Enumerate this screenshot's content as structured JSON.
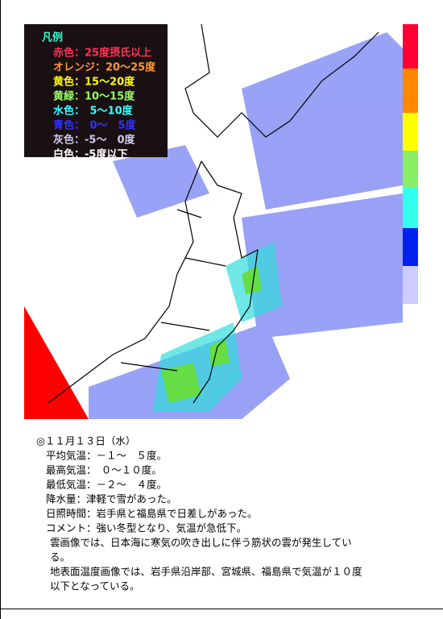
{
  "legend": {
    "title": "凡例",
    "title_color": "#33ffcc",
    "items": [
      {
        "text": "赤色：25度摂氏以上",
        "color": "#ff3355"
      },
      {
        "text": "オレンジ：20～25度",
        "color": "#ff9933"
      },
      {
        "text": "黄色：15～20度",
        "color": "#ffff00"
      },
      {
        "text": "黄緑：10～15度",
        "color": "#99ff66"
      },
      {
        "text": "水色：　5～10度",
        "color": "#33ffff"
      },
      {
        "text": "青色：　0～　5度",
        "color": "#3333ff"
      },
      {
        "text": "灰色：-5～　0度",
        "color": "#ccccee"
      },
      {
        "text": "白色：-5度以下",
        "color": "#ffffff"
      }
    ]
  },
  "scale_bar": [
    "#ff0033",
    "#ff8800",
    "#ffff00",
    "#88ee66",
    "#33ffee",
    "#0022ee",
    "#ccccff"
  ],
  "report": {
    "date": "◎１１月１３日（水）",
    "lines": [
      "平均気温：－１～　５度。",
      "最高気温：　０～１０度。",
      "最低気温：－２～　４度。",
      "降水量：津軽で雪があった。",
      "日照時間：岩手県と福島県で日差しがあった。",
      "コメント：強い冬型となり、気温が急低下。"
    ],
    "paragraphs": [
      "雲画像では、日本海に寒気の吹き出しに伴う筋状の雲が発生してい",
      "る。",
      "地表面温度画像では、岩手県沿岸部、宮城県、福島県で気温が１０度",
      "以下となっている。"
    ]
  }
}
